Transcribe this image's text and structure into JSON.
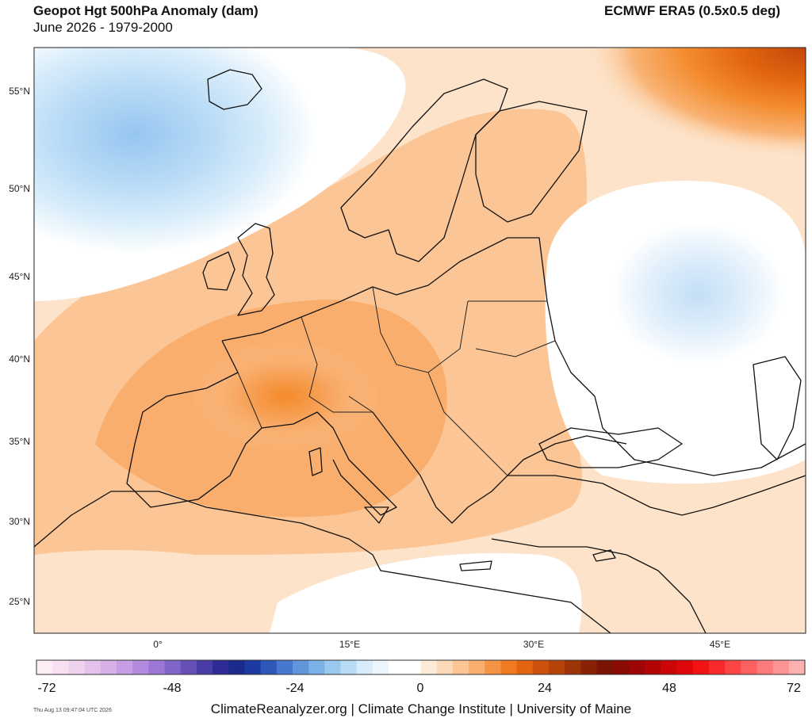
{
  "header": {
    "title": "Geopot Hgt 500hPa Anomaly (dam)",
    "subtitle": "June 2026 - 1979-2000",
    "source": "ECMWF ERA5 (0.5x0.5 deg)"
  },
  "map": {
    "region": "Europe",
    "lat_labels": [
      "55°N",
      "50°N",
      "45°N",
      "40°N",
      "35°N",
      "30°N",
      "25°N"
    ],
    "lon_labels": [
      "0°",
      "15°E",
      "30°E",
      "45°E"
    ]
  },
  "colorbar": {
    "labels": [
      "-72",
      "-48",
      "-24",
      "0",
      "24",
      "48",
      "72"
    ],
    "colors": [
      "#fdeef6",
      "#f8e0f2",
      "#efd2ee",
      "#e4c2ec",
      "#d7b0ea",
      "#c79de6",
      "#b28be0",
      "#9b78d6",
      "#8164c8",
      "#6650b8",
      "#4a3ca6",
      "#2e2b96",
      "#1c2a8c",
      "#1d3aa0",
      "#2f57bb",
      "#4678cf",
      "#6196dc",
      "#7bb1e7",
      "#9ac9f0",
      "#b9dcf6",
      "#d8ecfb",
      "#eef6fd",
      "#ffffff",
      "#ffffff",
      "#fdebd8",
      "#fcd9b8",
      "#fbc595",
      "#f9ae6d",
      "#f69445",
      "#f07a1f",
      "#e26410",
      "#cc520c",
      "#b5430a",
      "#9c3408",
      "#882106",
      "#7a1404",
      "#8a0a04",
      "#9e0605",
      "#b40506",
      "#cc0507",
      "#e0070a",
      "#f41313",
      "#fb2a2a",
      "#fd4545",
      "#fd6060",
      "#fd7a7a",
      "#fd9494",
      "#fdb0b0"
    ]
  },
  "footer": {
    "timestamp": "Thu Aug 13 09:47:04 UTC 2026",
    "credit": "ClimateReanalyzer.org | Climate Change Institute | University of Maine"
  }
}
